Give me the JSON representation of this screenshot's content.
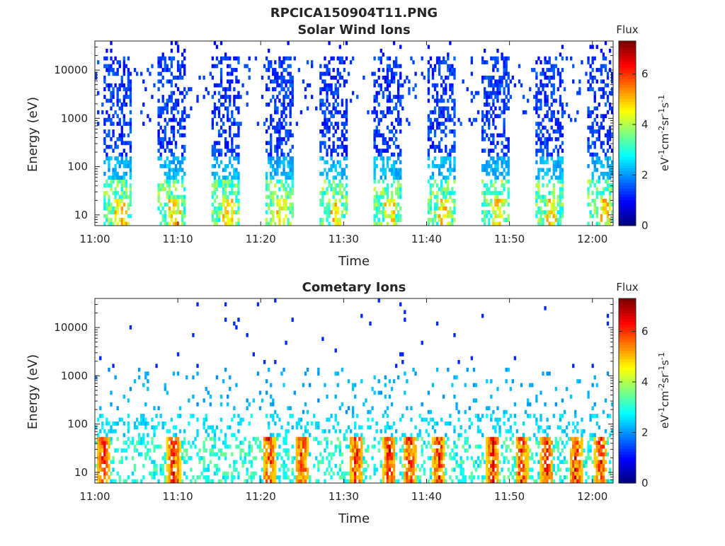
{
  "figure": {
    "title": "RPCICA150904T11.PNG"
  },
  "chart_data": [
    {
      "type": "heatmap",
      "title": "Solar Wind Ions",
      "xlabel": "Time",
      "ylabel": "Energy (eV)",
      "x_ticks": [
        "11:00",
        "11:10",
        "11:20",
        "11:30",
        "11:40",
        "11:50",
        "12:00"
      ],
      "y_ticks": [
        "10",
        "100",
        "1000",
        "10000"
      ],
      "y_scale": "log",
      "ylim": [
        6,
        40000
      ],
      "colorbar": {
        "label": "Flux",
        "units": "eV-1cm-2sr-1s-1",
        "range": [
          0,
          7.3
        ],
        "ticks": [
          "0",
          "2",
          "4",
          "6"
        ]
      },
      "pattern": {
        "bursts_start_min": [
          1,
          7.5,
          14,
          20.5,
          27,
          33.5,
          40,
          46.5,
          53,
          59.5
        ],
        "burst_width_min": 3.5,
        "low_energy_peak_flux": 4.5,
        "high_energy_flux": 1.2
      }
    },
    {
      "type": "heatmap",
      "title": "Cometary Ions",
      "xlabel": "Time",
      "ylabel": "Energy (eV)",
      "x_ticks": [
        "11:00",
        "11:10",
        "11:20",
        "11:30",
        "11:40",
        "11:50",
        "12:00"
      ],
      "y_ticks": [
        "10",
        "100",
        "1000",
        "10000"
      ],
      "y_scale": "log",
      "ylim": [
        6,
        40000
      ],
      "colorbar": {
        "label": "Flux",
        "units": "eV-1cm-2sr-1s-1",
        "range": [
          0,
          7.3
        ],
        "ticks": [
          "0",
          "2",
          "4",
          "6"
        ]
      },
      "pattern": {
        "hot_spots_min": [
          1,
          9.5,
          21,
          25,
          31.5,
          35.5,
          38,
          41.5,
          48,
          51.5,
          54.5,
          58,
          61
        ],
        "hot_spot_peak_flux": 6.8,
        "background_flux": 2.6
      }
    }
  ]
}
